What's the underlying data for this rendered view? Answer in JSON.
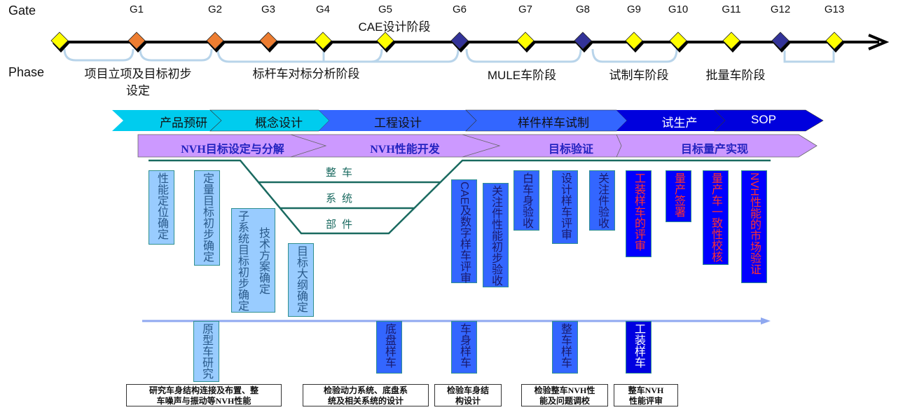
{
  "labels": {
    "gate": "Gate",
    "phase": "Phase"
  },
  "gates": [
    {
      "name": "",
      "color": "#ffff00"
    },
    {
      "name": "G1",
      "color": "#ed7d31"
    },
    {
      "name": "G2",
      "color": "#ed7d31"
    },
    {
      "name": "G3",
      "color": "#ed7d31"
    },
    {
      "name": "G4",
      "color": "#ffff00"
    },
    {
      "name": "G5",
      "color": "#ffff00"
    },
    {
      "name": "G6",
      "color": "#333399"
    },
    {
      "name": "G7",
      "color": "#ffff00"
    },
    {
      "name": "G8",
      "color": "#333399"
    },
    {
      "name": "G9",
      "color": "#ffff00"
    },
    {
      "name": "G10",
      "color": "#ffff00"
    },
    {
      "name": "G11",
      "color": "#ffff00"
    },
    {
      "name": "G12",
      "color": "#333399"
    },
    {
      "name": "G13",
      "color": "#ffff00"
    }
  ],
  "phases": {
    "p1_line1": "项目立项及目标初步",
    "p1_line2": "设定",
    "p2": "标杆车对标分析阶段",
    "p3": "CAE设计阶段",
    "p4": "MULE车阶段",
    "p5": "试制车阶段",
    "p6": "批量车阶段"
  },
  "stages": [
    "产品预研",
    "概念设计",
    "工程设计",
    "样件样车试制",
    "试生产",
    "SOP"
  ],
  "nvh_stages": [
    "NVH目标设定与分解",
    "NVH性能开发",
    "目标验证",
    "目标量产实现"
  ],
  "levels": [
    "整车",
    "系统",
    "部件"
  ],
  "tasks": {
    "t1": "性能定位确定",
    "t2": "定量目标初步确定",
    "t3a": "子系统目标初步确定",
    "t3b": "技术方案确定",
    "t4": "目标大纲确定",
    "t5": "CAE及数字样车评审",
    "t6": "关注件性能初步验收",
    "t7": "白车身验收",
    "t8": "设计样车评审",
    "t9": "关注件验收",
    "t10": "工装样车的评审",
    "t11": "量产签署",
    "t12": "量产车一致性校核",
    "t13": "NVH性能的市场验证"
  },
  "prototypes": {
    "p1": "原型车研究",
    "p2": "底盘样车",
    "p3": "车身样车",
    "p4": "整车样车",
    "p5": "工装样车"
  },
  "captions": {
    "c1a": "研究车身结构连接及布置、整",
    "c1b": "车噪声与振动等NVH性能",
    "c2a": "检验动力系统、底盘系",
    "c2b": "统及相关系统的设计",
    "c3a": "检验车身结",
    "c3b": "构设计",
    "c4a": "检验整车NVH性",
    "c4b": "能及问题调校",
    "c5a": "整车NVH",
    "c5b": "性能评审"
  },
  "colors": {
    "cyan": "#00ccee",
    "blue": "#3366ff",
    "dark_blue": "#0000dd",
    "lavender": "#cc99ff",
    "teal": "#1a6a60"
  }
}
